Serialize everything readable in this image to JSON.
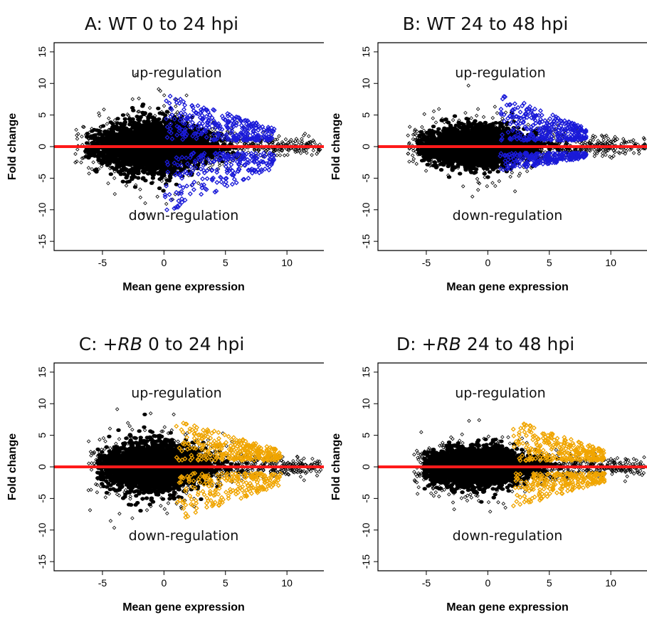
{
  "chart_data": [
    {
      "id": "A",
      "type": "scatter",
      "title": "A: WT 0 to 24 hpi",
      "title_parts": [
        {
          "text": "A: WT 0 to 24 hpi",
          "italic": false
        }
      ],
      "xlabel": "Mean gene expression",
      "ylabel": "Fold change",
      "xlim": [
        -8.7,
        13
      ],
      "ylim": [
        -16,
        16
      ],
      "xticks": [
        -5,
        0,
        5,
        10
      ],
      "yticks": [
        -15,
        -10,
        -5,
        0,
        5,
        10,
        15
      ],
      "grid": false,
      "reference_line": {
        "y": 0,
        "color": "#ff1a1a"
      },
      "annotations": [
        "up-regulation",
        "down-regulation"
      ],
      "highlight_color": "#1a1ad8",
      "base_color": "#000000",
      "series": [
        {
          "role": "all-genes",
          "x_range": [
            -7.2,
            12.8
          ],
          "peak_x": -1.0,
          "y_spread": 4.0
        },
        {
          "role": "significant",
          "x_range": [
            0.0,
            9.0
          ],
          "y_extent_up": 8.5,
          "y_extent_down": -10.5
        }
      ]
    },
    {
      "id": "B",
      "type": "scatter",
      "title": "B: WT 24 to 48 hpi",
      "title_parts": [
        {
          "text": "B: WT 24 to 48 hpi",
          "italic": false
        }
      ],
      "xlabel": "Mean gene expression",
      "ylabel": "Fold change",
      "xlim": [
        -8.7,
        13
      ],
      "ylim": [
        -16,
        16
      ],
      "xticks": [
        -5,
        0,
        5,
        10
      ],
      "yticks": [
        -15,
        -10,
        -5,
        0,
        5,
        10,
        15
      ],
      "grid": false,
      "reference_line": {
        "y": 0,
        "color": "#ff1a1a"
      },
      "annotations": [
        "up-regulation",
        "down-regulation"
      ],
      "highlight_color": "#1a1ad8",
      "base_color": "#000000",
      "series": [
        {
          "role": "all-genes",
          "x_range": [
            -6.5,
            12.8
          ],
          "peak_x": -1.0,
          "y_spread": 2.8
        },
        {
          "role": "significant",
          "x_range": [
            1.0,
            8.0
          ],
          "y_extent_up": 8.5,
          "y_extent_down": -4.0
        }
      ]
    },
    {
      "id": "C",
      "type": "scatter",
      "title": "C: +RB 0 to 24 hpi",
      "title_parts": [
        {
          "text": "C: +",
          "italic": false
        },
        {
          "text": "RB",
          "italic": true
        },
        {
          "text": " 0 to 24 hpi",
          "italic": false
        }
      ],
      "xlabel": "Mean gene expression",
      "ylabel": "Fold change",
      "xlim": [
        -8.7,
        13
      ],
      "ylim": [
        -16,
        16
      ],
      "xticks": [
        -5,
        0,
        5,
        10
      ],
      "yticks": [
        -15,
        -10,
        -5,
        0,
        5,
        10,
        15
      ],
      "grid": false,
      "reference_line": {
        "y": 0,
        "color": "#ff1a1a"
      },
      "annotations": [
        "up-regulation",
        "down-regulation"
      ],
      "highlight_color": "#f0a500",
      "base_color": "#000000",
      "series": [
        {
          "role": "all-genes",
          "x_range": [
            -6.2,
            12.8
          ],
          "peak_x": -1.0,
          "y_spread": 3.6
        },
        {
          "role": "significant",
          "x_range": [
            1.0,
            9.5
          ],
          "y_extent_up": 7.5,
          "y_extent_down": -8.5
        }
      ]
    },
    {
      "id": "D",
      "type": "scatter",
      "title": "D: +RB 24 to 48 hpi",
      "title_parts": [
        {
          "text": "D: +",
          "italic": false
        },
        {
          "text": "RB",
          "italic": true
        },
        {
          "text": " 24 to 48 hpi",
          "italic": false
        }
      ],
      "xlabel": "Mean gene expression",
      "ylabel": "Fold change",
      "xlim": [
        -8.7,
        13
      ],
      "ylim": [
        -16,
        16
      ],
      "xticks": [
        -5,
        0,
        5,
        10
      ],
      "yticks": [
        -15,
        -10,
        -5,
        0,
        5,
        10,
        15
      ],
      "grid": false,
      "reference_line": {
        "y": 0,
        "color": "#ff1a1a"
      },
      "annotations": [
        "up-regulation",
        "down-regulation"
      ],
      "highlight_color": "#f0a500",
      "base_color": "#000000",
      "series": [
        {
          "role": "all-genes",
          "x_range": [
            -6.0,
            12.8
          ],
          "peak_x": -1.0,
          "y_spread": 2.8
        },
        {
          "role": "significant",
          "x_range": [
            2.0,
            9.5
          ],
          "y_extent_up": 7.5,
          "y_extent_down": -6.5
        }
      ]
    }
  ]
}
